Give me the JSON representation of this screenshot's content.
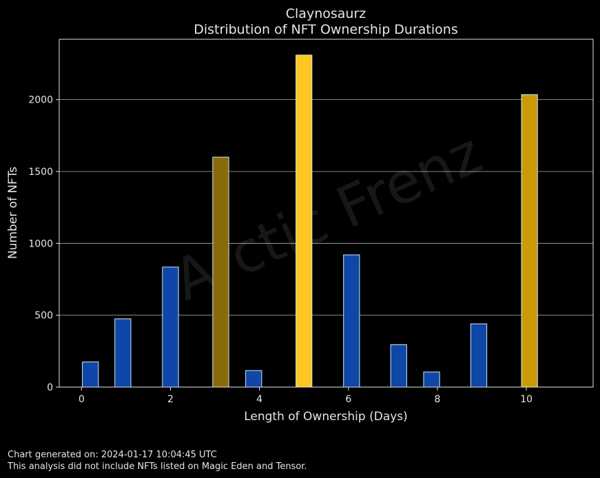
{
  "chart_data": {
    "type": "bar",
    "title": "Claynosaurz",
    "subtitle": "Distribution of NFT Ownership Durations",
    "xlabel": "Length of Ownership (Days)",
    "ylabel": "Number of NFTs",
    "xlim": [
      -0.5,
      11.5
    ],
    "ylim": [
      0,
      2420
    ],
    "xticks": [
      0,
      2,
      4,
      6,
      8,
      10
    ],
    "yticks": [
      0,
      500,
      1000,
      1500,
      2000
    ],
    "grid": "horizontal",
    "watermark": "Arctic Frenz",
    "bars": [
      {
        "x": 0.2,
        "value": 175,
        "color": "#0e47a8"
      },
      {
        "x": 0.93,
        "value": 475,
        "color": "#0e47a8"
      },
      {
        "x": 2.0,
        "value": 835,
        "color": "#0e47a8"
      },
      {
        "x": 3.13,
        "value": 1600,
        "color": "#8a6a09"
      },
      {
        "x": 3.87,
        "value": 115,
        "color": "#0e47a8"
      },
      {
        "x": 5.0,
        "value": 2310,
        "color": "#ffc520"
      },
      {
        "x": 6.07,
        "value": 920,
        "color": "#0e47a8"
      },
      {
        "x": 7.13,
        "value": 295,
        "color": "#0e47a8"
      },
      {
        "x": 7.87,
        "value": 105,
        "color": "#0e47a8"
      },
      {
        "x": 8.93,
        "value": 440,
        "color": "#0e47a8"
      },
      {
        "x": 10.07,
        "value": 2035,
        "color": "#cc9a07"
      }
    ]
  },
  "footer": {
    "generated": "Chart generated on: 2024-01-17 10:04:45 UTC",
    "note": "This analysis did not include NFTs listed on Magic Eden and Tensor."
  }
}
